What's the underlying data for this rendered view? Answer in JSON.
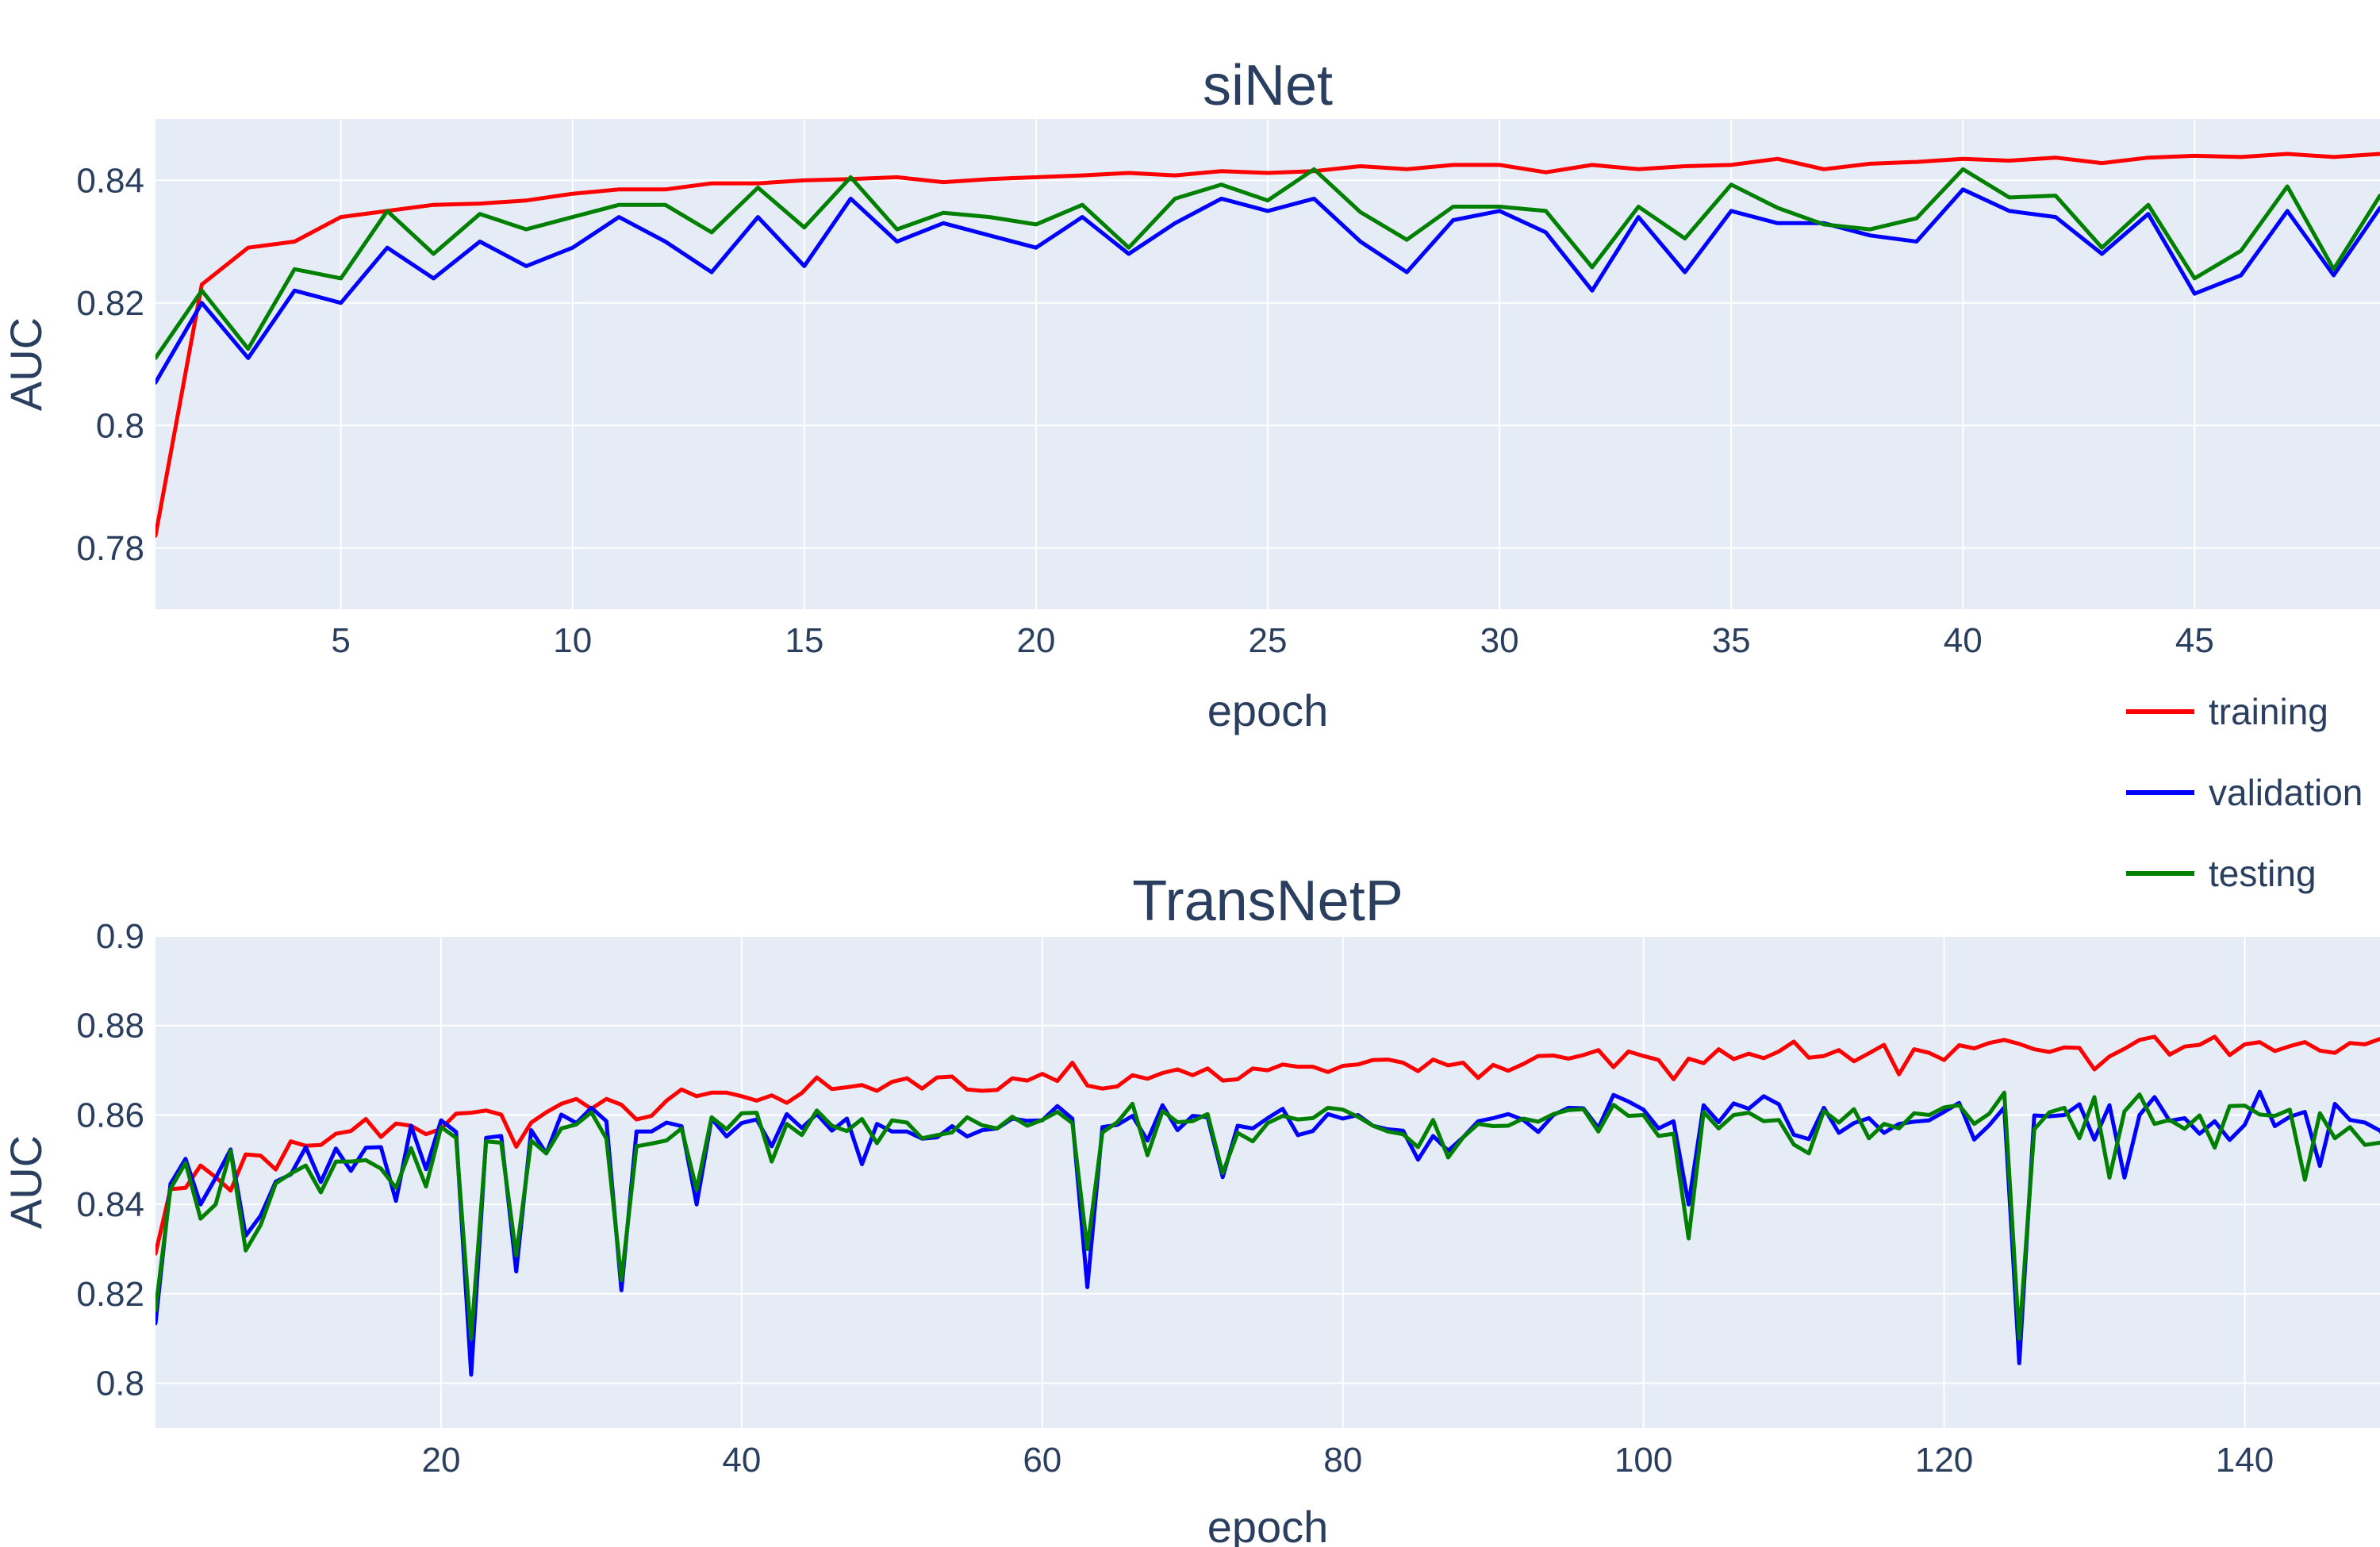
{
  "chart_data": [
    {
      "type": "line",
      "title": "siNet",
      "xlabel": "epoch",
      "ylabel": "AUC",
      "xlim": [
        1,
        49
      ],
      "ylim": [
        0.77,
        0.85
      ],
      "xticks": [
        5,
        10,
        15,
        20,
        25,
        30,
        35,
        40,
        45
      ],
      "xtick_labels": [
        "5",
        "10",
        "15",
        "20",
        "25",
        "30",
        "35",
        "40",
        "45"
      ],
      "yticks": [
        0.78,
        0.8,
        0.82,
        0.84
      ],
      "ytick_labels": [
        "0.78",
        "0.8",
        "0.82",
        "0.84"
      ],
      "grid": true,
      "series": [
        {
          "name": "training",
          "color": "#ff0000",
          "x_start": 1,
          "x_step": 1,
          "values": [
            0.782,
            0.823,
            0.829,
            0.83,
            0.834,
            0.835,
            0.836,
            0.8362,
            0.8367,
            0.8378,
            0.8385,
            0.8385,
            0.8395,
            0.8395,
            0.84,
            0.8402,
            0.8405,
            0.8397,
            0.8402,
            0.8405,
            0.8408,
            0.8412,
            0.8408,
            0.8415,
            0.8412,
            0.8415,
            0.8423,
            0.8418,
            0.8425,
            0.8425,
            0.8413,
            0.8425,
            0.8418,
            0.8423,
            0.8425,
            0.8435,
            0.8418,
            0.8427,
            0.843,
            0.8435,
            0.8432,
            0.8437,
            0.8428,
            0.8437,
            0.844,
            0.8438,
            0.8443,
            0.8438,
            0.8443
          ]
        },
        {
          "name": "validation",
          "color": "#0000ff",
          "x_start": 1,
          "x_step": 1,
          "values": [
            0.807,
            0.82,
            0.811,
            0.822,
            0.82,
            0.829,
            0.824,
            0.83,
            0.826,
            0.829,
            0.834,
            0.83,
            0.825,
            0.834,
            0.826,
            0.837,
            0.83,
            0.833,
            0.831,
            0.829,
            0.834,
            0.828,
            0.833,
            0.837,
            0.835,
            0.837,
            0.83,
            0.825,
            0.8335,
            0.835,
            0.8315,
            0.822,
            0.834,
            0.825,
            0.835,
            0.833,
            0.833,
            0.831,
            0.83,
            0.8385,
            0.835,
            0.834,
            0.828,
            0.8345,
            0.8215,
            0.8245,
            0.835,
            0.8245,
            0.8355
          ]
        },
        {
          "name": "testing",
          "color": "#008000",
          "x_start": 1,
          "x_step": 1,
          "values": [
            0.811,
            0.822,
            0.8125,
            0.8255,
            0.824,
            0.835,
            0.828,
            0.8345,
            0.832,
            0.834,
            0.836,
            0.836,
            0.8315,
            0.8388,
            0.8323,
            0.8405,
            0.832,
            0.8347,
            0.834,
            0.8328,
            0.836,
            0.829,
            0.837,
            0.8393,
            0.8367,
            0.8418,
            0.8348,
            0.8303,
            0.8357,
            0.8357,
            0.835,
            0.8258,
            0.8357,
            0.8305,
            0.8393,
            0.8355,
            0.8328,
            0.832,
            0.8338,
            0.8418,
            0.8372,
            0.8375,
            0.829,
            0.836,
            0.824,
            0.8285,
            0.839,
            0.8255,
            0.8375
          ]
        }
      ]
    },
    {
      "type": "line",
      "title": "TransNetP",
      "xlabel": "epoch",
      "ylabel": "AUC",
      "xlim": [
        1,
        149
      ],
      "ylim": [
        0.79,
        0.9
      ],
      "xticks": [
        20,
        40,
        60,
        80,
        100,
        120,
        140
      ],
      "xtick_labels": [
        "20",
        "40",
        "60",
        "80",
        "100",
        "120",
        "140"
      ],
      "yticks": [
        0.8,
        0.82,
        0.84,
        0.86,
        0.88,
        0.9
      ],
      "ytick_labels": [
        "0.8",
        "0.82",
        "0.84",
        "0.86",
        "0.88",
        "0.9"
      ],
      "grid": true,
      "series": [
        {
          "name": "training",
          "color": "#ff0000",
          "x_start": 1,
          "x_step": 1,
          "values": [
            0.829,
            0.8434,
            0.8437,
            0.8487,
            0.8461,
            0.8431,
            0.8512,
            0.8509,
            0.8478,
            0.8541,
            0.8531,
            0.8533,
            0.8558,
            0.8564,
            0.8591,
            0.8551,
            0.8581,
            0.8576,
            0.8557,
            0.8569,
            0.8603,
            0.8605,
            0.861,
            0.8601,
            0.8529,
            0.8583,
            0.8606,
            0.8625,
            0.8636,
            0.8614,
            0.8636,
            0.8623,
            0.859,
            0.8598,
            0.8632,
            0.8657,
            0.8642,
            0.865,
            0.865,
            0.8642,
            0.8632,
            0.8644,
            0.8627,
            0.8649,
            0.8684,
            0.8658,
            0.8662,
            0.8667,
            0.8654,
            0.8674,
            0.8682,
            0.8659,
            0.8684,
            0.8686,
            0.8657,
            0.8654,
            0.8656,
            0.8682,
            0.8677,
            0.8692,
            0.8676,
            0.8717,
            0.8666,
            0.8659,
            0.8664,
            0.8689,
            0.8681,
            0.8694,
            0.8702,
            0.8689,
            0.8704,
            0.8677,
            0.868,
            0.8704,
            0.87,
            0.8713,
            0.8708,
            0.8708,
            0.8696,
            0.871,
            0.8713,
            0.8723,
            0.8724,
            0.8717,
            0.8698,
            0.8724,
            0.8711,
            0.8717,
            0.8683,
            0.8712,
            0.8699,
            0.8714,
            0.8732,
            0.8733,
            0.8726,
            0.8734,
            0.8745,
            0.8707,
            0.8742,
            0.8732,
            0.8723,
            0.868,
            0.8726,
            0.8716,
            0.8747,
            0.8725,
            0.8737,
            0.8727,
            0.8742,
            0.8764,
            0.8728,
            0.8732,
            0.8745,
            0.872,
            0.8738,
            0.8757,
            0.8691,
            0.8747,
            0.8739,
            0.8723,
            0.8756,
            0.8749,
            0.8761,
            0.8768,
            0.8759,
            0.8747,
            0.8741,
            0.8751,
            0.875,
            0.8702,
            0.8731,
            0.8748,
            0.8768,
            0.8775,
            0.8735,
            0.8753,
            0.8757,
            0.8775,
            0.8734,
            0.8758,
            0.8763,
            0.8743,
            0.8754,
            0.8763,
            0.8744,
            0.8739,
            0.8761,
            0.8758,
            0.877
          ]
        },
        {
          "name": "validation",
          "color": "#0000ff",
          "x_start": 1,
          "x_step": 1,
          "values": [
            0.8134,
            0.8446,
            0.8502,
            0.84,
            0.8459,
            0.8523,
            0.833,
            0.8375,
            0.8451,
            0.8467,
            0.8528,
            0.845,
            0.8525,
            0.8475,
            0.8527,
            0.8528,
            0.8408,
            0.8576,
            0.8479,
            0.8588,
            0.8562,
            0.8019,
            0.8549,
            0.8553,
            0.825,
            0.8566,
            0.8514,
            0.8601,
            0.8582,
            0.8616,
            0.8586,
            0.8208,
            0.8563,
            0.8563,
            0.8583,
            0.8575,
            0.84,
            0.8592,
            0.8552,
            0.8582,
            0.859,
            0.853,
            0.8602,
            0.8571,
            0.8602,
            0.8565,
            0.8592,
            0.849,
            0.858,
            0.8563,
            0.8563,
            0.8547,
            0.855,
            0.8575,
            0.8552,
            0.8566,
            0.857,
            0.8592,
            0.8587,
            0.8588,
            0.862,
            0.8592,
            0.8215,
            0.8573,
            0.8578,
            0.8598,
            0.8543,
            0.8622,
            0.8566,
            0.8598,
            0.8595,
            0.8461,
            0.8576,
            0.857,
            0.8593,
            0.8614,
            0.8555,
            0.8564,
            0.8602,
            0.8592,
            0.86,
            0.8576,
            0.8568,
            0.8565,
            0.85,
            0.8553,
            0.852,
            0.855,
            0.8586,
            0.8593,
            0.8602,
            0.8589,
            0.8562,
            0.86,
            0.8616,
            0.8615,
            0.8571,
            0.8645,
            0.863,
            0.8612,
            0.857,
            0.8586,
            0.84,
            0.8622,
            0.8584,
            0.8626,
            0.8614,
            0.8642,
            0.8624,
            0.8556,
            0.8546,
            0.8616,
            0.856,
            0.8582,
            0.8593,
            0.856,
            0.858,
            0.8585,
            0.8588,
            0.8607,
            0.8627,
            0.8545,
            0.8577,
            0.8617,
            0.8045,
            0.8599,
            0.8597,
            0.86,
            0.8624,
            0.8545,
            0.8622,
            0.846,
            0.86,
            0.864,
            0.8587,
            0.8593,
            0.8558,
            0.8586,
            0.8544,
            0.8578,
            0.8652,
            0.8575,
            0.8596,
            0.8607,
            0.8486,
            0.8625,
            0.8589,
            0.8583,
            0.8565,
            0.8519
          ]
        },
        {
          "name": "testing",
          "color": "#008000",
          "x_start": 1,
          "x_step": 1,
          "values": [
            0.8163,
            0.8435,
            0.8493,
            0.8368,
            0.84,
            0.852,
            0.8297,
            0.8354,
            0.8447,
            0.8469,
            0.8487,
            0.8427,
            0.8496,
            0.8496,
            0.8499,
            0.848,
            0.8437,
            0.8526,
            0.844,
            0.8573,
            0.8549,
            0.81,
            0.8541,
            0.8538,
            0.8286,
            0.8543,
            0.8514,
            0.857,
            0.8579,
            0.8606,
            0.8547,
            0.823,
            0.853,
            0.8536,
            0.8543,
            0.857,
            0.8433,
            0.8595,
            0.8568,
            0.8604,
            0.8605,
            0.8496,
            0.858,
            0.8555,
            0.861,
            0.8576,
            0.8564,
            0.8591,
            0.8537,
            0.8588,
            0.8583,
            0.8548,
            0.8555,
            0.8561,
            0.8595,
            0.8577,
            0.857,
            0.8596,
            0.8576,
            0.8589,
            0.8607,
            0.8582,
            0.83,
            0.8561,
            0.8584,
            0.8625,
            0.851,
            0.8609,
            0.8584,
            0.8586,
            0.8602,
            0.847,
            0.856,
            0.8541,
            0.8582,
            0.8598,
            0.859,
            0.8593,
            0.8616,
            0.8612,
            0.8596,
            0.8576,
            0.8563,
            0.8557,
            0.8528,
            0.8589,
            0.8505,
            0.855,
            0.858,
            0.8575,
            0.8576,
            0.8592,
            0.8585,
            0.8602,
            0.8611,
            0.8613,
            0.8563,
            0.8623,
            0.8598,
            0.86,
            0.8553,
            0.8558,
            0.8324,
            0.8607,
            0.857,
            0.86,
            0.8605,
            0.8586,
            0.8589,
            0.8534,
            0.8514,
            0.8609,
            0.8583,
            0.8613,
            0.8548,
            0.858,
            0.857,
            0.8604,
            0.86,
            0.8617,
            0.8622,
            0.858,
            0.8603,
            0.865,
            0.81,
            0.8568,
            0.8606,
            0.8616,
            0.8548,
            0.864,
            0.846,
            0.8608,
            0.8646,
            0.858,
            0.8589,
            0.8569,
            0.8599,
            0.8527,
            0.862,
            0.8621,
            0.8601,
            0.8598,
            0.8612,
            0.8455,
            0.8604,
            0.8548,
            0.8573,
            0.8533,
            0.8538
          ]
        }
      ]
    }
  ],
  "legend": {
    "placement": "right-middle",
    "items": [
      {
        "label": "training",
        "color": "#ff0000"
      },
      {
        "label": "validation",
        "color": "#0000ff"
      },
      {
        "label": "testing",
        "color": "#008000"
      }
    ]
  }
}
